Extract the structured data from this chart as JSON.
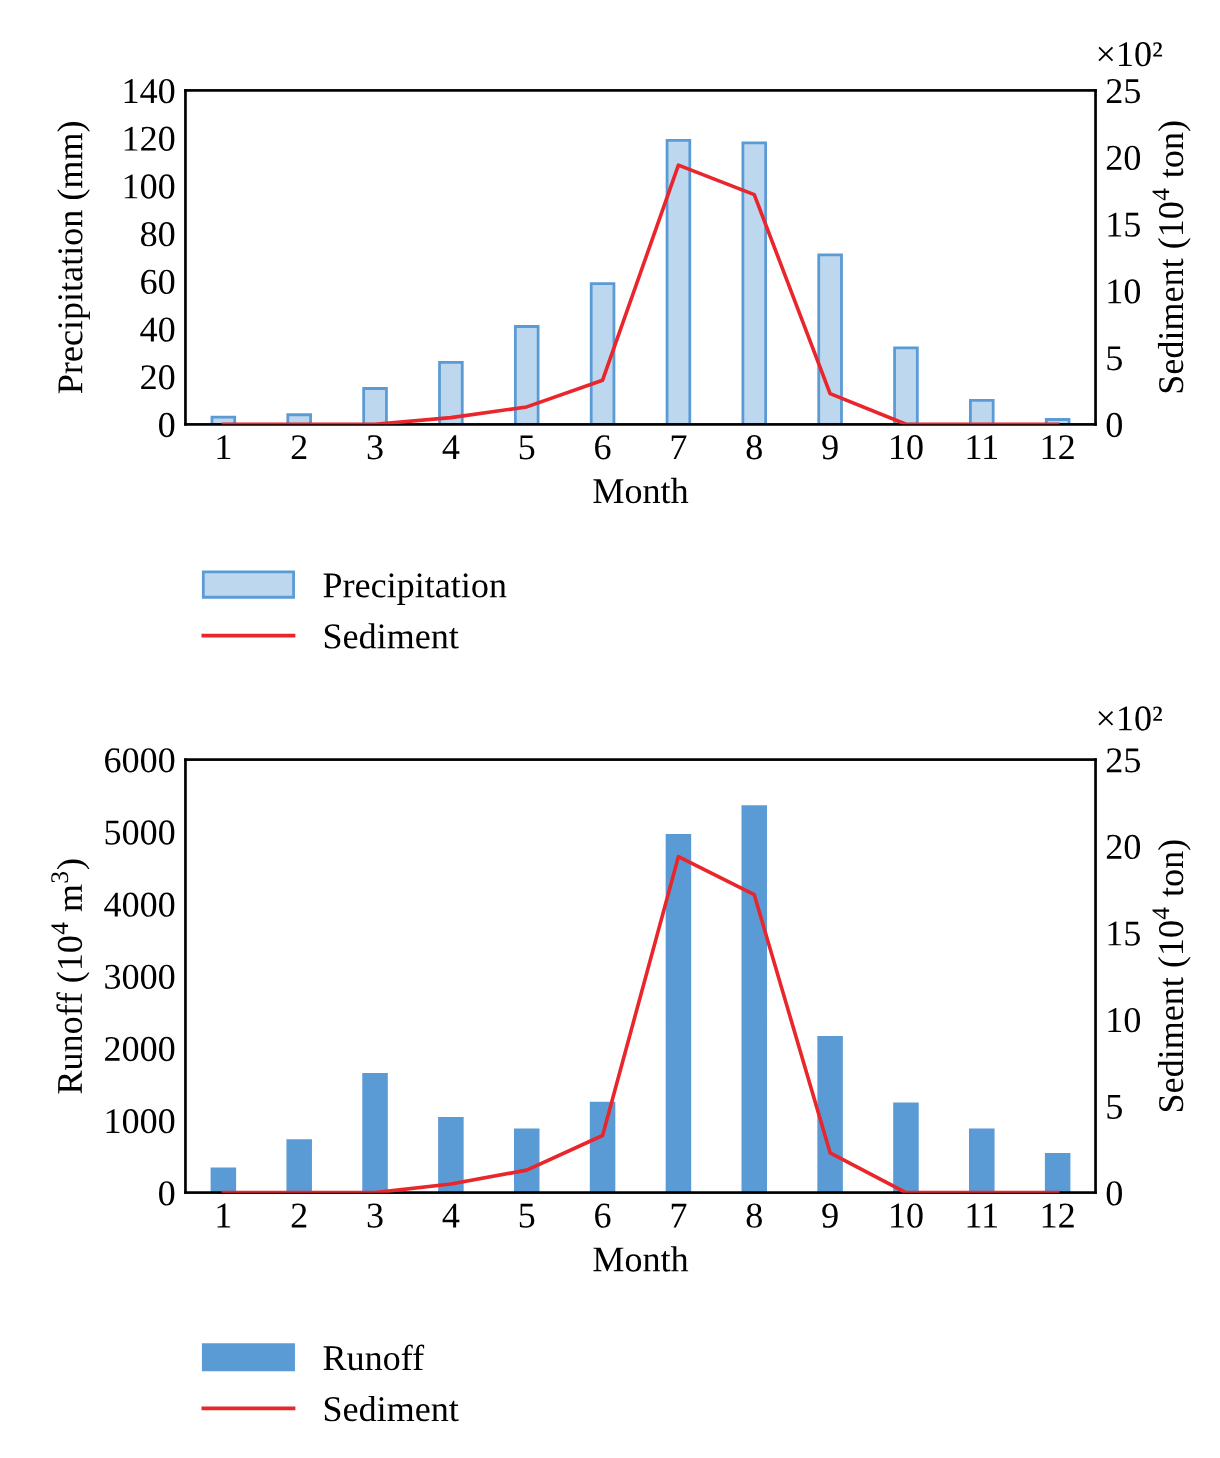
{
  "chart_data": [
    {
      "type": "bar",
      "xlabel": "Month",
      "ylabel": "Precipitation (mm)",
      "y2label": "Sediment (10$^{4}$ ton)",
      "categories": [
        "1",
        "2",
        "3",
        "4",
        "5",
        "6",
        "7",
        "8",
        "9",
        "10",
        "11",
        "12"
      ],
      "series": [
        {
          "name": "Precipitation",
          "color": "#bdd7ee",
          "values": [
            3,
            4,
            15,
            26,
            41,
            59,
            119,
            118,
            71,
            32,
            10,
            2
          ]
        },
        {
          "name": "Sediment",
          "type": "line",
          "axis": "y2",
          "color": "#e8262b",
          "values": [
            0,
            0,
            0,
            0.5,
            1.3,
            3.3,
            19.4,
            17.2,
            2.3,
            0,
            0,
            0
          ]
        }
      ],
      "ylim": [
        0,
        140
      ],
      "yticks": [
        0,
        20,
        40,
        60,
        80,
        100,
        120,
        140
      ],
      "y2lim": [
        0,
        25
      ],
      "y2ticks": [
        0,
        5,
        10,
        15,
        20,
        25
      ],
      "annotations": [
        "×10²"
      ],
      "legend": "bottom",
      "grid": false,
      "marker": "none",
      "line_style": "solid"
    },
    {
      "type": "bar",
      "xlabel": "Month",
      "ylabel": "Runoff (10$^{4}$ m$^{3}$)",
      "y2label": "Sediment (10$^{4}$ ton)",
      "categories": [
        "1",
        "2",
        "3",
        "4",
        "5",
        "6",
        "7",
        "8",
        "9",
        "10",
        "11",
        "12"
      ],
      "series": [
        {
          "name": "Runoff",
          "color": "#5b9bd5",
          "values": [
            330,
            720,
            1640,
            1030,
            870,
            1240,
            4950,
            5350,
            2150,
            1230,
            870,
            530
          ]
        },
        {
          "name": "Sediment",
          "type": "line",
          "axis": "y2",
          "color": "#e8262b",
          "values": [
            0,
            0,
            0,
            0.5,
            1.3,
            3.3,
            19.4,
            17.2,
            2.3,
            0,
            0,
            0
          ]
        }
      ],
      "ylim": [
        0,
        6000
      ],
      "yticks": [
        0,
        1000,
        2000,
        3000,
        4000,
        5000,
        6000
      ],
      "y2lim": [
        0,
        25
      ],
      "y2ticks": [
        0,
        5,
        10,
        15,
        20,
        25
      ],
      "annotations": [
        "×10²"
      ],
      "legend": "bottom",
      "grid": false,
      "marker": "none",
      "line_style": "solid"
    }
  ]
}
